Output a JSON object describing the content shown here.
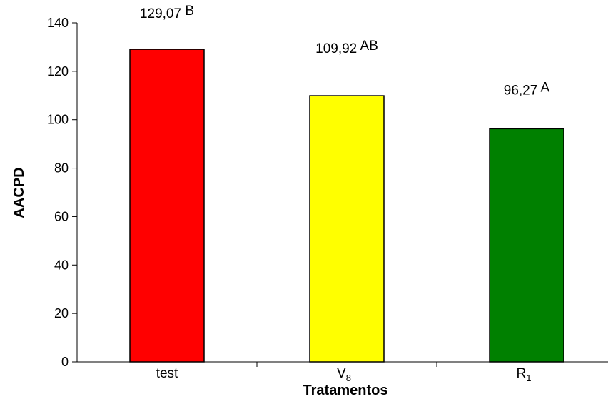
{
  "chart_data": {
    "type": "bar",
    "categories": [
      "test",
      "V8",
      "R1"
    ],
    "category_labels": [
      {
        "main": "test",
        "sub": ""
      },
      {
        "main": "V",
        "sub": "8"
      },
      {
        "main": "R",
        "sub": "1"
      }
    ],
    "values": [
      129.07,
      109.92,
      96.27
    ],
    "data_labels": [
      {
        "value": "129,07",
        "letter": "B"
      },
      {
        "value": "109,92",
        "letter": "AB"
      },
      {
        "value": "96,27",
        "letter": "A"
      }
    ],
    "bar_colors": [
      "#ff0000",
      "#ffff00",
      "#008000"
    ],
    "title": "",
    "xlabel": "Tratamentos",
    "ylabel": "AACPD",
    "ylim": [
      0,
      140
    ],
    "yticks": [
      0,
      20,
      40,
      60,
      80,
      100,
      120,
      140
    ],
    "grid": false,
    "legend": "none"
  }
}
